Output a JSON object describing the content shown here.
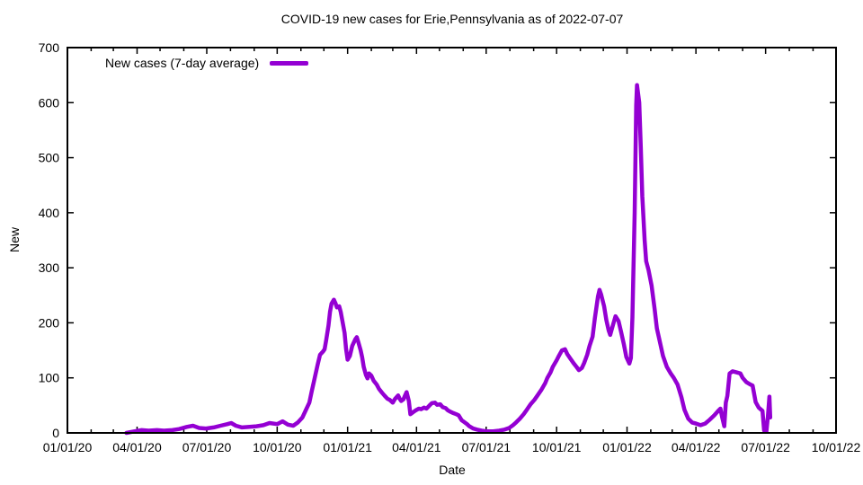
{
  "title": "COVID-19 new cases for Erie,Pennsylvania as of 2022-07-07",
  "colors": {
    "line": "#9400d3",
    "axis": "#000000",
    "background": "#ffffff",
    "text": "#000000"
  },
  "chart_data": {
    "type": "line",
    "title": "COVID-19 new cases for Erie,Pennsylvania as of 2022-07-07",
    "xlabel": "Date",
    "ylabel": "New",
    "grid": false,
    "legend_position": "top-left-inside",
    "ylim": [
      0,
      700
    ],
    "y_ticks": [
      0,
      100,
      200,
      300,
      400,
      500,
      600,
      700
    ],
    "x_range": [
      "2020-01-01",
      "2022-10-01"
    ],
    "x_tick_labels": [
      "01/01/20",
      "04/01/20",
      "07/01/20",
      "10/01/20",
      "01/01/21",
      "04/01/21",
      "07/01/21",
      "10/01/21",
      "01/01/22",
      "04/01/22",
      "07/01/22",
      "10/01/22"
    ],
    "x_minor_ticks": "monthly",
    "series": [
      {
        "name": "New cases (7-day average)",
        "color": "#9400d3",
        "points": [
          [
            "2020-03-18",
            0
          ],
          [
            "2020-03-29",
            3
          ],
          [
            "2020-04-07",
            5
          ],
          [
            "2020-04-16",
            4
          ],
          [
            "2020-04-27",
            5
          ],
          [
            "2020-05-06",
            4
          ],
          [
            "2020-05-17",
            5
          ],
          [
            "2020-05-26",
            7
          ],
          [
            "2020-06-05",
            11
          ],
          [
            "2020-06-13",
            13
          ],
          [
            "2020-06-21",
            9
          ],
          [
            "2020-06-30",
            8
          ],
          [
            "2020-07-10",
            10
          ],
          [
            "2020-07-19",
            13
          ],
          [
            "2020-07-28",
            16
          ],
          [
            "2020-08-02",
            18
          ],
          [
            "2020-08-08",
            13
          ],
          [
            "2020-08-16",
            10
          ],
          [
            "2020-08-26",
            11
          ],
          [
            "2020-09-04",
            12
          ],
          [
            "2020-09-13",
            14
          ],
          [
            "2020-09-21",
            18
          ],
          [
            "2020-10-01",
            16
          ],
          [
            "2020-10-08",
            21
          ],
          [
            "2020-10-15",
            15
          ],
          [
            "2020-10-22",
            13
          ],
          [
            "2020-10-28",
            19
          ],
          [
            "2020-11-03",
            28
          ],
          [
            "2020-11-07",
            40
          ],
          [
            "2020-11-12",
            55
          ],
          [
            "2020-11-15",
            75
          ],
          [
            "2020-11-19",
            100
          ],
          [
            "2020-11-23",
            125
          ],
          [
            "2020-11-26",
            142
          ],
          [
            "2020-11-30",
            148
          ],
          [
            "2020-12-02",
            152
          ],
          [
            "2020-12-04",
            168
          ],
          [
            "2020-12-07",
            195
          ],
          [
            "2020-12-09",
            220
          ],
          [
            "2020-12-11",
            235
          ],
          [
            "2020-12-14",
            242
          ],
          [
            "2020-12-16",
            236
          ],
          [
            "2020-12-18",
            228
          ],
          [
            "2020-12-21",
            230
          ],
          [
            "2020-12-23",
            220
          ],
          [
            "2020-12-25",
            205
          ],
          [
            "2020-12-28",
            182
          ],
          [
            "2020-12-30",
            152
          ],
          [
            "2021-01-01",
            133
          ],
          [
            "2021-01-04",
            140
          ],
          [
            "2021-01-07",
            158
          ],
          [
            "2021-01-11",
            170
          ],
          [
            "2021-01-13",
            174
          ],
          [
            "2021-01-15",
            165
          ],
          [
            "2021-01-18",
            150
          ],
          [
            "2021-01-20",
            137
          ],
          [
            "2021-01-22",
            120
          ],
          [
            "2021-01-25",
            105
          ],
          [
            "2021-01-27",
            99
          ],
          [
            "2021-01-29",
            108
          ],
          [
            "2021-02-01",
            104
          ],
          [
            "2021-02-04",
            95
          ],
          [
            "2021-02-08",
            88
          ],
          [
            "2021-02-11",
            80
          ],
          [
            "2021-02-15",
            73
          ],
          [
            "2021-02-18",
            68
          ],
          [
            "2021-02-22",
            62
          ],
          [
            "2021-02-25",
            60
          ],
          [
            "2021-03-01",
            55
          ],
          [
            "2021-03-04",
            62
          ],
          [
            "2021-03-08",
            68
          ],
          [
            "2021-03-10",
            62
          ],
          [
            "2021-03-12",
            58
          ],
          [
            "2021-03-15",
            61
          ],
          [
            "2021-03-17",
            68
          ],
          [
            "2021-03-19",
            74
          ],
          [
            "2021-03-22",
            58
          ],
          [
            "2021-03-24",
            34
          ],
          [
            "2021-03-28",
            38
          ],
          [
            "2021-03-31",
            41
          ],
          [
            "2021-04-04",
            44
          ],
          [
            "2021-04-07",
            43
          ],
          [
            "2021-04-11",
            46
          ],
          [
            "2021-04-14",
            44
          ],
          [
            "2021-04-18",
            50
          ],
          [
            "2021-04-21",
            54
          ],
          [
            "2021-04-25",
            55
          ],
          [
            "2021-04-28",
            51
          ],
          [
            "2021-05-02",
            52
          ],
          [
            "2021-05-05",
            47
          ],
          [
            "2021-05-09",
            45
          ],
          [
            "2021-05-12",
            41
          ],
          [
            "2021-05-16",
            38
          ],
          [
            "2021-05-19",
            36
          ],
          [
            "2021-05-23",
            34
          ],
          [
            "2021-05-26",
            32
          ],
          [
            "2021-05-30",
            23
          ],
          [
            "2021-06-02",
            20
          ],
          [
            "2021-06-06",
            16
          ],
          [
            "2021-06-09",
            12
          ],
          [
            "2021-06-14",
            8
          ],
          [
            "2021-06-19",
            6
          ],
          [
            "2021-06-25",
            4
          ],
          [
            "2021-07-02",
            3
          ],
          [
            "2021-07-10",
            3
          ],
          [
            "2021-07-18",
            4
          ],
          [
            "2021-07-25",
            6
          ],
          [
            "2021-07-31",
            9
          ],
          [
            "2021-08-05",
            14
          ],
          [
            "2021-08-09",
            19
          ],
          [
            "2021-08-14",
            26
          ],
          [
            "2021-08-19",
            34
          ],
          [
            "2021-08-23",
            42
          ],
          [
            "2021-08-28",
            52
          ],
          [
            "2021-09-02",
            60
          ],
          [
            "2021-09-06",
            68
          ],
          [
            "2021-09-11",
            78
          ],
          [
            "2021-09-16",
            90
          ],
          [
            "2021-09-19",
            100
          ],
          [
            "2021-09-23",
            110
          ],
          [
            "2021-09-26",
            120
          ],
          [
            "2021-10-01",
            132
          ],
          [
            "2021-10-04",
            140
          ],
          [
            "2021-10-08",
            150
          ],
          [
            "2021-10-12",
            152
          ],
          [
            "2021-10-15",
            143
          ],
          [
            "2021-10-19",
            135
          ],
          [
            "2021-10-23",
            127
          ],
          [
            "2021-10-27",
            120
          ],
          [
            "2021-10-30",
            114
          ],
          [
            "2021-11-03",
            118
          ],
          [
            "2021-11-06",
            127
          ],
          [
            "2021-11-10",
            142
          ],
          [
            "2021-11-13",
            158
          ],
          [
            "2021-11-17",
            175
          ],
          [
            "2021-11-20",
            208
          ],
          [
            "2021-11-24",
            248
          ],
          [
            "2021-11-26",
            260
          ],
          [
            "2021-11-28",
            252
          ],
          [
            "2021-12-02",
            230
          ],
          [
            "2021-12-05",
            205
          ],
          [
            "2021-12-08",
            186
          ],
          [
            "2021-12-10",
            178
          ],
          [
            "2021-12-14",
            198
          ],
          [
            "2021-12-17",
            212
          ],
          [
            "2021-12-21",
            203
          ],
          [
            "2021-12-24",
            185
          ],
          [
            "2021-12-28",
            160
          ],
          [
            "2021-12-31",
            138
          ],
          [
            "2022-01-04",
            126
          ],
          [
            "2022-01-06",
            136
          ],
          [
            "2022-01-08",
            210
          ],
          [
            "2022-01-11",
            400
          ],
          [
            "2022-01-13",
            595
          ],
          [
            "2022-01-14",
            632
          ],
          [
            "2022-01-17",
            600
          ],
          [
            "2022-01-19",
            520
          ],
          [
            "2022-01-21",
            430
          ],
          [
            "2022-01-24",
            350
          ],
          [
            "2022-01-26",
            312
          ],
          [
            "2022-01-29",
            296
          ],
          [
            "2022-02-02",
            268
          ],
          [
            "2022-02-06",
            225
          ],
          [
            "2022-02-09",
            190
          ],
          [
            "2022-02-13",
            165
          ],
          [
            "2022-02-17",
            140
          ],
          [
            "2022-02-22",
            120
          ],
          [
            "2022-02-27",
            108
          ],
          [
            "2022-03-03",
            100
          ],
          [
            "2022-03-08",
            88
          ],
          [
            "2022-03-13",
            65
          ],
          [
            "2022-03-17",
            42
          ],
          [
            "2022-03-22",
            26
          ],
          [
            "2022-03-27",
            19
          ],
          [
            "2022-04-01",
            17
          ],
          [
            "2022-04-07",
            14
          ],
          [
            "2022-04-13",
            17
          ],
          [
            "2022-04-19",
            24
          ],
          [
            "2022-04-25",
            32
          ],
          [
            "2022-04-30",
            40
          ],
          [
            "2022-05-03",
            44
          ],
          [
            "2022-05-05",
            30
          ],
          [
            "2022-05-08",
            12
          ],
          [
            "2022-05-10",
            55
          ],
          [
            "2022-05-12",
            67
          ],
          [
            "2022-05-15",
            108
          ],
          [
            "2022-05-19",
            112
          ],
          [
            "2022-05-24",
            110
          ],
          [
            "2022-05-29",
            108
          ],
          [
            "2022-06-01",
            100
          ],
          [
            "2022-06-06",
            92
          ],
          [
            "2022-06-11",
            88
          ],
          [
            "2022-06-14",
            86
          ],
          [
            "2022-06-18",
            56
          ],
          [
            "2022-06-22",
            46
          ],
          [
            "2022-06-27",
            40
          ],
          [
            "2022-06-29",
            4
          ],
          [
            "2022-07-02",
            2
          ],
          [
            "2022-07-04",
            30
          ],
          [
            "2022-07-06",
            66
          ],
          [
            "2022-07-07",
            28
          ]
        ]
      }
    ]
  }
}
